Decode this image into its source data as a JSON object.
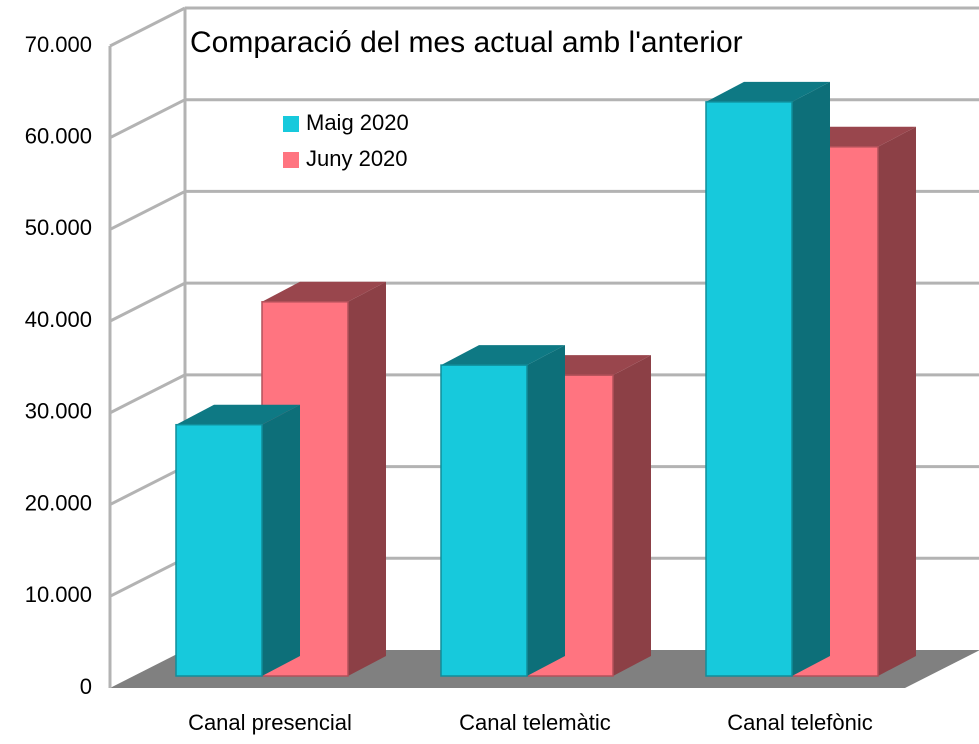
{
  "chart_data": {
    "type": "bar3d",
    "title": "Comparació del mes actual amb l'anterior",
    "categories": [
      "Canal presencial",
      "Canal telemàtic",
      "Canal telefònic"
    ],
    "series": [
      {
        "name": "Maig 2020",
        "color": "#17c9dc",
        "values": [
          27400,
          33900,
          62600
        ]
      },
      {
        "name": "Juny 2020",
        "color": "#ff7480",
        "values": [
          40800,
          32800,
          57700
        ]
      }
    ],
    "ylim": [
      0,
      70000
    ],
    "yticks": [
      0,
      {
        "value": 10000,
        "label": "10.000"
      },
      {
        "value": 20000,
        "label": "20.000"
      },
      {
        "value": 30000,
        "label": "30.000"
      },
      {
        "value": 40000,
        "label": "40.000"
      },
      {
        "value": 50000,
        "label": "50.000"
      },
      {
        "value": 60000,
        "label": "60.000"
      },
      {
        "value": 70000,
        "label": "70.000"
      }
    ],
    "grid": true
  }
}
